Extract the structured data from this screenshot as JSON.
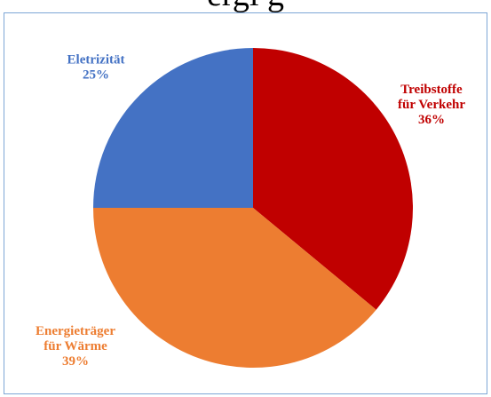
{
  "page": {
    "title_fragment": "ergi                                         g"
  },
  "chart_data": {
    "type": "pie",
    "title": "",
    "slices": [
      {
        "label_lines": [
          "Treibstoffe",
          "für Verkehr"
        ],
        "percent_text": "36%",
        "value": 36,
        "color": "#c00000"
      },
      {
        "label_lines": [
          "Energieträger",
          "für Wärme"
        ],
        "percent_text": "39%",
        "value": 39,
        "color": "#ed7d31"
      },
      {
        "label_lines": [
          "Eletrizität"
        ],
        "percent_text": "25%",
        "value": 25,
        "color": "#4472c4"
      }
    ]
  }
}
